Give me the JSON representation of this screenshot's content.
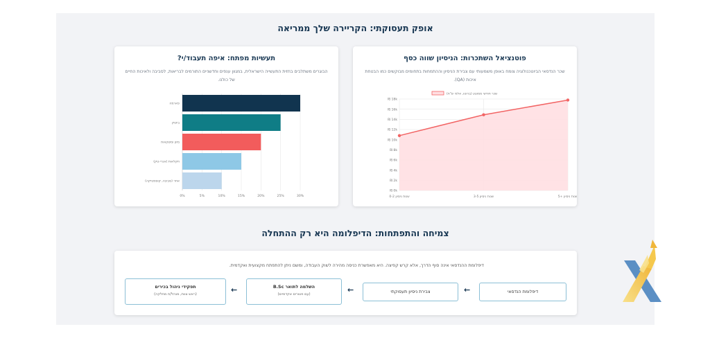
{
  "main": {
    "section1_title": "אופק תעסוקתי: הקריירה שלך ממריאה",
    "section2_title": "צמיחה והתפתחות: הדיפלומה היא רק ההתחלה"
  },
  "salary_card": {
    "title": "פוטנציאל השתכרות: הניסיון שווה כסף",
    "description": "שכר הנדסאי הביוטכנולוגיה צומח באופן משמעותי עם צבירת הניסיון וההתמחות בתחומים מבוקשים כמו הבטחת איכות (QA)."
  },
  "industry_card": {
    "title": "תעשיות מפתח: איפה תעבוד/י?",
    "description": "הבוגרים משתלבים בחזית התעשייה הישראלית, במגוון ענפים וחדשניים התורמים לבריאות, לסביבה ולאיכות החיים של כולנו."
  },
  "chart_data": [
    {
      "type": "area",
      "legend": "שכר חודשי ממוצע (ברוטו, אלפי ש\"ח)",
      "legend_position": "top",
      "categories": [
        "0-2 שנות ניסיון",
        "3-5 שנות ניסיון",
        "5+ שנות ניסיון"
      ],
      "values": [
        10.8,
        14.9,
        17.8
      ],
      "ylim": [
        0,
        18
      ],
      "yticks": [
        "₪ 0k",
        "₪ 2k",
        "₪ 4k",
        "₪ 6k",
        "₪ 8k",
        "₪ 10k",
        "₪ 12k",
        "₪ 14k",
        "₪ 16k",
        "₪ 18k"
      ],
      "grid": true,
      "colors": {
        "line": "#f26464",
        "fill": "#ffdfe2"
      }
    },
    {
      "type": "bar",
      "orientation": "horizontal",
      "categories": [
        "פארמה",
        "ביוטק",
        "מזון ומשקאות",
        "חקלאות (אגרי-טק)",
        "אחר (סביבה, קוסמטיקה)"
      ],
      "values": [
        30,
        25,
        20,
        15,
        10
      ],
      "xlim": [
        0,
        30
      ],
      "xticks": [
        "0%",
        "5%",
        "10%",
        "15%",
        "20%",
        "25%",
        "30%"
      ],
      "grid": true,
      "colors": [
        "#11344f",
        "#0f7d86",
        "#f25c5c",
        "#8ec8e6",
        "#bcd6ec"
      ]
    }
  ],
  "growth": {
    "intro": "דיפלומת ההנדסאי אינה סוף הדרך, אלא קרש קפיצה. היא מאפשרת כניסה מהירה לשוק העבודה, ומשם ניתן להתפתח מקצועית ואקדמית.",
    "steps": [
      {
        "title": "דיפלומת הנדסאי",
        "subtitle": ""
      },
      {
        "title": "צבירת ניסיון תעסוקתי",
        "subtitle": ""
      },
      {
        "title": "השלמה לתואר B.Sc",
        "subtitle": "(עם פטורים אקדמיים)"
      },
      {
        "title": "תפקידי ניהול בכירים",
        "subtitle": "(ראש צוות, מנהל/ת מחלקה)"
      }
    ],
    "arrow": "←"
  },
  "logo": {
    "icon": "x-arrow-logo-icon",
    "colors": [
      "#5b8fc4",
      "#f5d76e"
    ]
  }
}
